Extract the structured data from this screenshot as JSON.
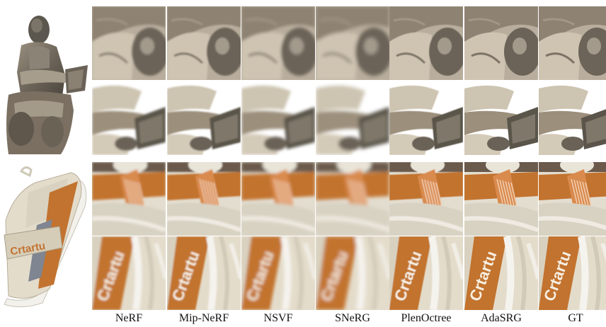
{
  "figure": {
    "methods": [
      "NeRF",
      "Mip-NeRF",
      "NSVF",
      "SNeRG",
      "PlenOctree",
      "AdaSRG",
      "GT"
    ],
    "rows": [
      {
        "scene": "statue",
        "crop": "knee"
      },
      {
        "scene": "statue",
        "crop": "book"
      },
      {
        "scene": "shoe",
        "crop": "strap"
      },
      {
        "scene": "shoe",
        "crop": "logo"
      }
    ],
    "logo_text": "Crtartu",
    "colors": {
      "stone_light": "#d8cfc0",
      "stone_mid": "#8f8577",
      "stone_dark": "#4a443c",
      "shoe_cream": "#e4dccb",
      "shoe_orange": "#c2732f",
      "shoe_white": "#f3f1ec"
    }
  }
}
